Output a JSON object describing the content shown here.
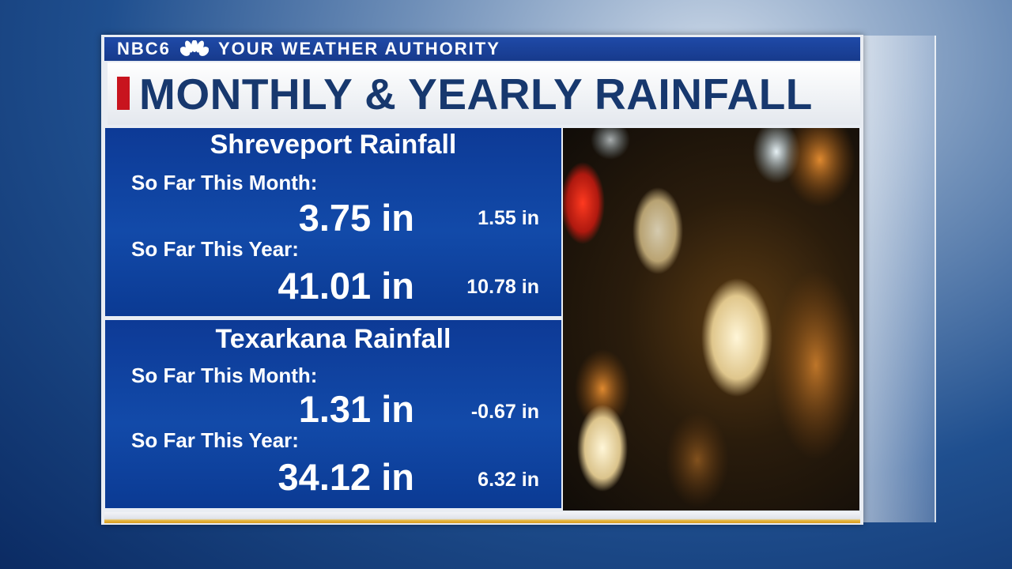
{
  "header": {
    "brand": "NBC6",
    "tagline": "YOUR WEATHER AUTHORITY"
  },
  "title": "MONTHLY & YEARLY RAINFALL",
  "sections": [
    {
      "heading": "Shreveport Rainfall",
      "rows": [
        {
          "label": "So Far This Month:",
          "total": "3.75 in",
          "departure": "1.55 in"
        },
        {
          "label": "So Far This Year:",
          "total": "41.01 in",
          "departure": "10.78 in"
        }
      ]
    },
    {
      "heading": "Texarkana Rainfall",
      "rows": [
        {
          "label": "So Far This Month:",
          "total": "1.31 in",
          "departure": "-0.67 in"
        },
        {
          "label": "So Far This Year:",
          "total": "34.12 in",
          "departure": "6.32 in"
        }
      ]
    }
  ]
}
